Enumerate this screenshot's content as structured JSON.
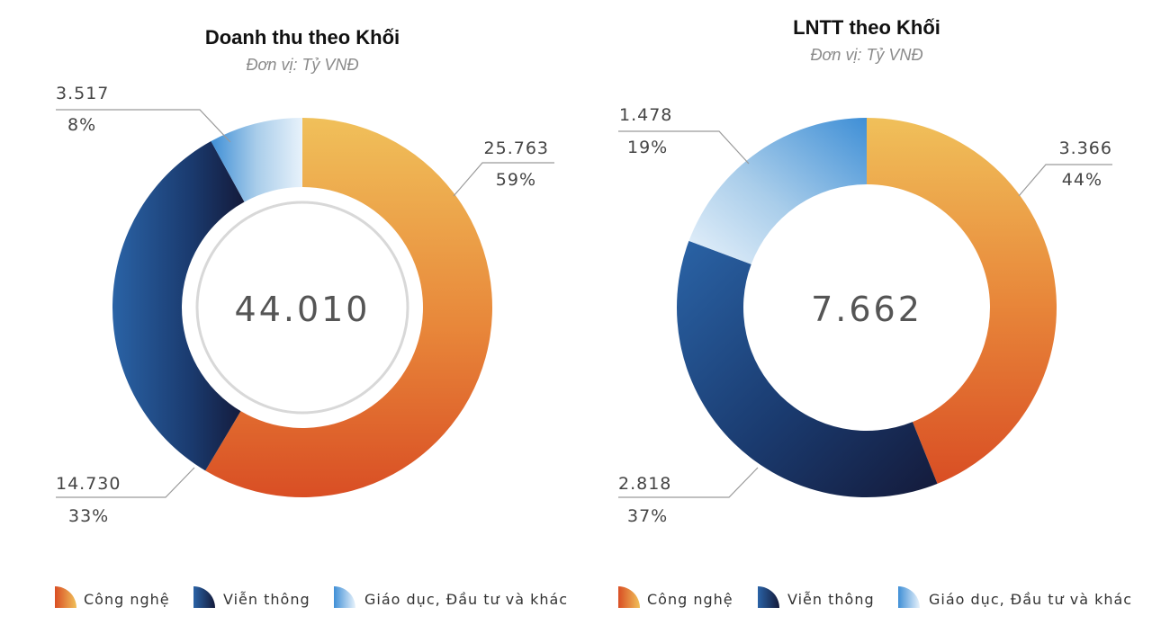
{
  "chart_data": [
    {
      "type": "pie",
      "title": "Doanh thu theo Khối",
      "subtitle": "Đơn vị: Tỷ VNĐ",
      "center_label": "44.010",
      "series": [
        {
          "name": "Công nghệ",
          "value": 25.763,
          "value_label": "25.763",
          "percent_label": "59%"
        },
        {
          "name": "Viễn thông",
          "value": 14.73,
          "value_label": "14.730",
          "percent_label": "33%"
        },
        {
          "name": "Giáo dục, Đầu tư và khác",
          "value": 3.517,
          "value_label": "3.517",
          "percent_label": "8%"
        }
      ]
    },
    {
      "type": "pie",
      "title": "LNTT theo Khối",
      "subtitle": "Đơn vị: Tỷ VNĐ",
      "center_label": "7.662",
      "series": [
        {
          "name": "Công nghệ",
          "value": 3.366,
          "value_label": "3.366",
          "percent_label": "44%"
        },
        {
          "name": "Viễn thông",
          "value": 2.818,
          "value_label": "2.818",
          "percent_label": "37%"
        },
        {
          "name": "Giáo dục, Đầu tư và khác",
          "value": 1.478,
          "value_label": "1.478",
          "percent_label": "19%"
        }
      ]
    }
  ],
  "legend": [
    {
      "label": "Công nghệ",
      "icon": "orange-gradient-quarter-icon"
    },
    {
      "label": "Viễn thông",
      "icon": "navy-gradient-quarter-icon"
    },
    {
      "label": "Giáo dục, Đầu tư và khác",
      "icon": "light-blue-gradient-quarter-icon"
    }
  ],
  "colors": {
    "technology": [
      "#f0c05a",
      "#e8873a",
      "#d94e24"
    ],
    "telecom": [
      "#2a63a6",
      "#1a3a6e",
      "#141a3a"
    ],
    "education": [
      "#e8f2fb",
      "#a9cdea",
      "#3f8fd6"
    ]
  }
}
